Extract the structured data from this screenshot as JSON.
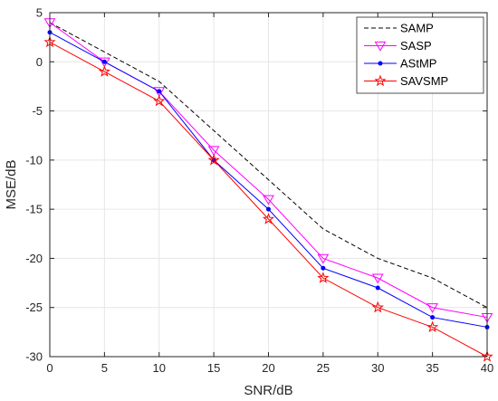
{
  "chart_data": {
    "type": "line",
    "xlabel": "SNR/dB",
    "ylabel": "MSE/dB",
    "xlim": [
      0,
      40
    ],
    "ylim": [
      -30,
      5
    ],
    "xticks": [
      0,
      5,
      10,
      15,
      20,
      25,
      30,
      35,
      40
    ],
    "yticks": [
      5,
      0,
      -5,
      -10,
      -15,
      -20,
      -25,
      -30
    ],
    "grid": true,
    "legend_position": "top-right",
    "x": [
      0,
      5,
      10,
      15,
      20,
      25,
      30,
      35,
      40
    ],
    "series": [
      {
        "name": "SAMP",
        "color": "#000000",
        "line": "dashed",
        "marker": "none",
        "values": [
          4,
          1,
          -2,
          -7,
          -12,
          -17,
          -20,
          -22,
          -25
        ]
      },
      {
        "name": "SASP",
        "color": "#ff00ff",
        "line": "solid",
        "marker": "triangle-down",
        "values": [
          4,
          0,
          -3,
          -9,
          -14,
          -20,
          -22,
          -25,
          -26
        ]
      },
      {
        "name": "AStMP",
        "color": "#0000ff",
        "line": "solid",
        "marker": "dot",
        "values": [
          3,
          0,
          -3,
          -10,
          -15,
          -21,
          -23,
          -26,
          -27
        ]
      },
      {
        "name": "SAVSMP",
        "color": "#ff0000",
        "line": "solid",
        "marker": "star",
        "values": [
          2,
          -1,
          -4,
          -10,
          -16,
          -22,
          -25,
          -27,
          -30
        ]
      }
    ]
  }
}
